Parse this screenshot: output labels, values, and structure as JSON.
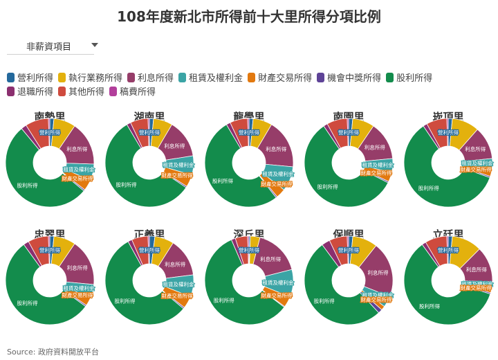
{
  "title": "108年度新北市所得前十大里所得分項比例",
  "dropdown": {
    "selected": "非薪資項目"
  },
  "source": "Source: 政府資料開放平台",
  "legend": [
    {
      "label": "營利所得",
      "color": "#24699c"
    },
    {
      "label": "執行業務所得",
      "color": "#e3b10d"
    },
    {
      "label": "利息所得",
      "color": "#963d69"
    },
    {
      "label": "租賃及權利金",
      "color": "#3ba4a5"
    },
    {
      "label": "財產交易所得",
      "color": "#e2790f"
    },
    {
      "label": "機會中獎所得",
      "color": "#5e4397"
    },
    {
      "label": "股利所得",
      "color": "#138c4c"
    },
    {
      "label": "退職所得",
      "color": "#8b2f6f"
    },
    {
      "label": "其他所得",
      "color": "#cf4b3e"
    },
    {
      "label": "稿費所得",
      "color": "#b23f9b"
    }
  ],
  "chart_data": [
    {
      "type": "pie",
      "title": "南勢里",
      "categories": [
        "營利所得",
        "執行業務所得",
        "利息所得",
        "租賃及權利金",
        "財產交易所得",
        "機會中獎所得",
        "股利所得",
        "退職所得",
        "其他所得",
        "稿費所得"
      ],
      "values": [
        1.5,
        8,
        16,
        6,
        4,
        0.5,
        53,
        2,
        8.5,
        0.5
      ]
    },
    {
      "type": "pie",
      "title": "湖南里",
      "categories": [
        "營利所得",
        "執行業務所得",
        "利息所得",
        "租賃及權利金",
        "財產交易所得",
        "機會中獎所得",
        "股利所得",
        "退職所得",
        "其他所得",
        "稿費所得"
      ],
      "values": [
        1.5,
        7,
        14,
        7,
        4.5,
        0.5,
        57,
        1.5,
        6.5,
        0.5
      ]
    },
    {
      "type": "pie",
      "title": "龍學里",
      "categories": [
        "營利所得",
        "執行業務所得",
        "利息所得",
        "租賃及權利金",
        "財產交易所得",
        "機會中獎所得",
        "股利所得",
        "退職所得",
        "其他所得",
        "稿費所得"
      ],
      "values": [
        1.5,
        7,
        18,
        9,
        3.5,
        0.5,
        52,
        1.5,
        6.5,
        0.5
      ]
    },
    {
      "type": "pie",
      "title": "南園里",
      "categories": [
        "營利所得",
        "執行業務所得",
        "利息所得",
        "租賃及權利金",
        "財產交易所得",
        "機會中獎所得",
        "股利所得",
        "退職所得",
        "其他所得",
        "稿費所得"
      ],
      "values": [
        1.5,
        8,
        14,
        5,
        3.5,
        0.5,
        58,
        1.5,
        7.5,
        0.5
      ]
    },
    {
      "type": "pie",
      "title": "崁頂里",
      "categories": [
        "營利所得",
        "執行業務所得",
        "利息所得",
        "租賃及權利金",
        "財產交易所得",
        "機會中獎所得",
        "股利所得",
        "退職所得",
        "其他所得",
        "稿費所得"
      ],
      "values": [
        1.5,
        10,
        12,
        3.5,
        3,
        0.5,
        60,
        1.5,
        7.5,
        0.5
      ]
    },
    {
      "type": "pie",
      "title": "忠翠里",
      "categories": [
        "營利所得",
        "執行業務所得",
        "利息所得",
        "租賃及權利金",
        "財產交易所得",
        "機會中獎所得",
        "股利所得",
        "退職所得",
        "其他所得",
        "稿費所得"
      ],
      "values": [
        1.5,
        8,
        17,
        5,
        3,
        0.5,
        55,
        2,
        7.5,
        0.5
      ]
    },
    {
      "type": "pie",
      "title": "正義里",
      "categories": [
        "營利所得",
        "執行業務所得",
        "利息所得",
        "租賃及權利金",
        "財產交易所得",
        "機會中獎所得",
        "股利所得",
        "退職所得",
        "其他所得",
        "稿費所得"
      ],
      "values": [
        2,
        7,
        14,
        8,
        4.5,
        0.5,
        56,
        1.5,
        6,
        0.5
      ]
    },
    {
      "type": "pie",
      "title": "深丘里",
      "categories": [
        "營利所得",
        "執行業務所得",
        "利息所得",
        "租賃及權利金",
        "財產交易所得",
        "機會中獎所得",
        "股利所得",
        "退職所得",
        "其他所得",
        "稿費所得"
      ],
      "values": [
        0.5,
        3.5,
        17,
        10,
        4,
        0.3,
        58,
        1.5,
        4.5,
        0.5
      ]
    },
    {
      "type": "pie",
      "title": "保順里",
      "categories": [
        "營利所得",
        "執行業務所得",
        "利息所得",
        "租賃及權利金",
        "財產交易所得",
        "機會中獎所得",
        "股利所得",
        "退職所得",
        "其他所得",
        "稿費所得"
      ],
      "values": [
        1.5,
        9,
        20,
        4,
        1.5,
        1.5,
        51,
        3,
        6.5,
        0.5
      ]
    },
    {
      "type": "pie",
      "title": "立廷里",
      "categories": [
        "營利所得",
        "執行業務所得",
        "利息所得",
        "租賃及權利金",
        "財產交易所得",
        "機會中獎所得",
        "股利所得",
        "退職所得",
        "其他所得",
        "稿費所得"
      ],
      "values": [
        1.5,
        11,
        13,
        2.5,
        1.5,
        0.5,
        60,
        1.5,
        8,
        0.5
      ]
    }
  ]
}
